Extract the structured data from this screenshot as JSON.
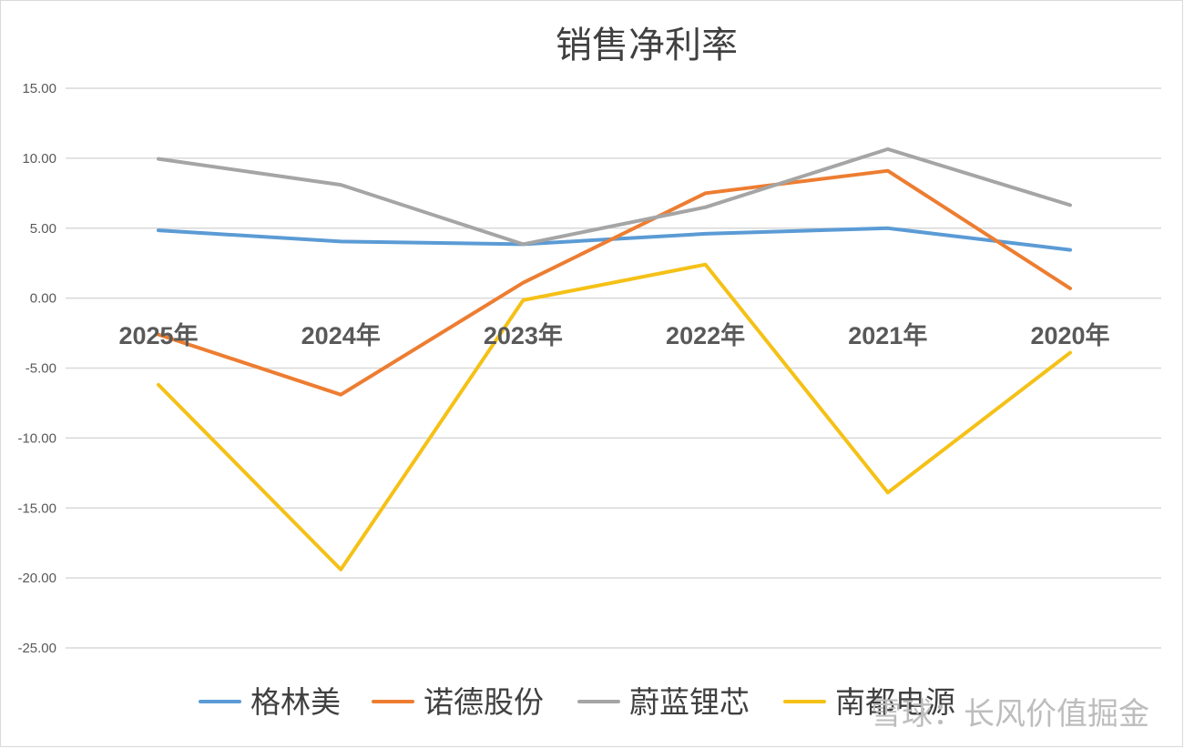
{
  "chart_data": {
    "type": "line",
    "title": "销售净利率",
    "xlabel": "",
    "ylabel": "",
    "categories": [
      "2025年",
      "2024年",
      "2023年",
      "2022年",
      "2021年",
      "2020年"
    ],
    "ylim": [
      -25,
      15
    ],
    "yticks": [
      "15.00",
      "10.00",
      "5.00",
      "0.00",
      "-5.00",
      "-10.00",
      "-15.00",
      "-20.00",
      "-25.00"
    ],
    "grid": true,
    "legend_position": "bottom",
    "series": [
      {
        "name": "格林美",
        "color": "#5b9bd5",
        "values": [
          4.85,
          4.05,
          3.85,
          4.6,
          5.0,
          3.45
        ]
      },
      {
        "name": "诺德股份",
        "color": "#ed7d31",
        "values": [
          -2.6,
          -6.9,
          1.1,
          7.5,
          9.1,
          0.7
        ]
      },
      {
        "name": "蔚蓝锂芯",
        "color": "#a5a5a5",
        "values": [
          9.95,
          8.1,
          3.85,
          6.5,
          10.65,
          6.65
        ]
      },
      {
        "name": "南都电源",
        "color": "#f5c117",
        "values": [
          -6.2,
          -19.4,
          -0.15,
          2.4,
          -13.9,
          -3.9
        ]
      }
    ]
  },
  "watermark": {
    "text": "雪球：长风价值掘金"
  }
}
